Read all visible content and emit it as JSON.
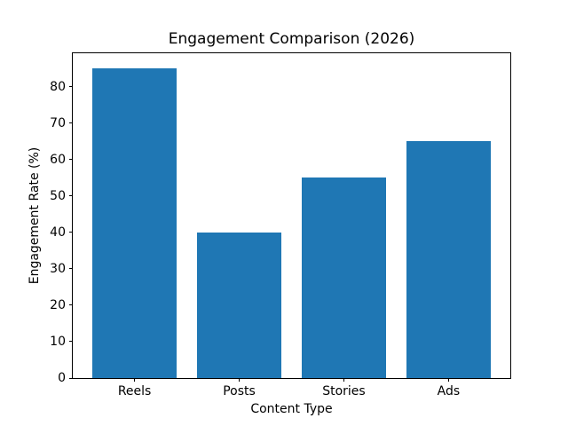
{
  "chart_data": {
    "type": "bar",
    "title": "Engagement Comparison (2026)",
    "xlabel": "Content Type",
    "ylabel": "Engagement Rate (%)",
    "categories": [
      "Reels",
      "Posts",
      "Stories",
      "Ads"
    ],
    "values": [
      85,
      40,
      55,
      65
    ],
    "bar_color": "#1f77b4",
    "axis_color": "#000000",
    "background_color": "#ffffff",
    "ylim": [
      0,
      89.25
    ],
    "yticks": [
      0,
      10,
      20,
      30,
      40,
      50,
      60,
      70,
      80
    ],
    "bar_width_fraction": 0.8,
    "grid": false,
    "legend_position": "none"
  }
}
